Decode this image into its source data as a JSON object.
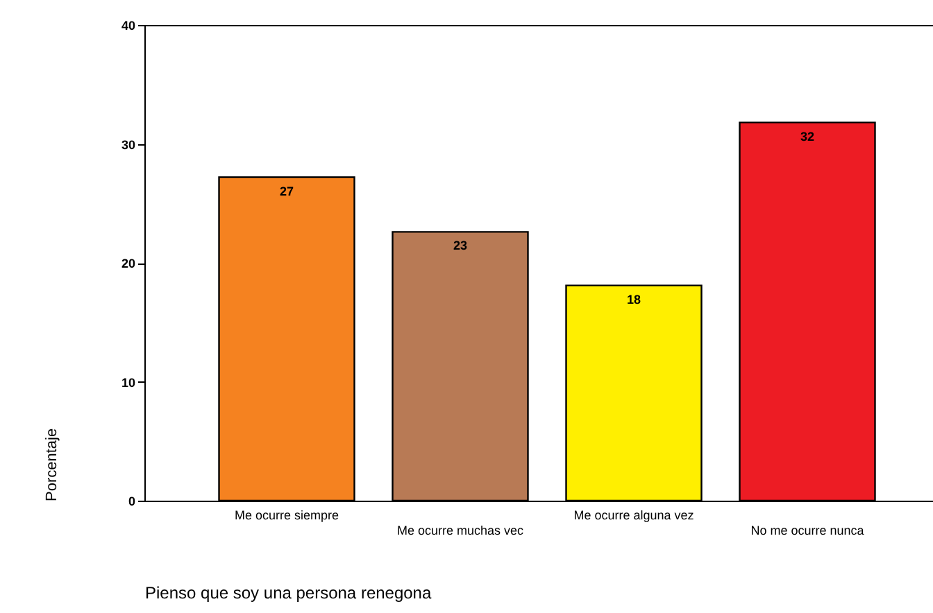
{
  "chart_data": {
    "type": "bar",
    "xlabel": "Pienso que soy una persona renegona",
    "ylabel": "Porcentaje",
    "categories": [
      "Me ocurre siempre",
      "Me ocurre muchas vec",
      "Me ocurre alguna vez",
      "No me ocurre nunca"
    ],
    "values": [
      27.2,
      22.6,
      18.1,
      31.8
    ],
    "colors": [
      "#f58220",
      "#b87a55",
      "#ffef00",
      "#ed1c24"
    ],
    "value_labels": [
      "27",
      "23",
      "18",
      "32"
    ],
    "ylim": [
      0,
      40
    ],
    "yticks": [
      0,
      10,
      20,
      30,
      40
    ],
    "grid": false
  }
}
